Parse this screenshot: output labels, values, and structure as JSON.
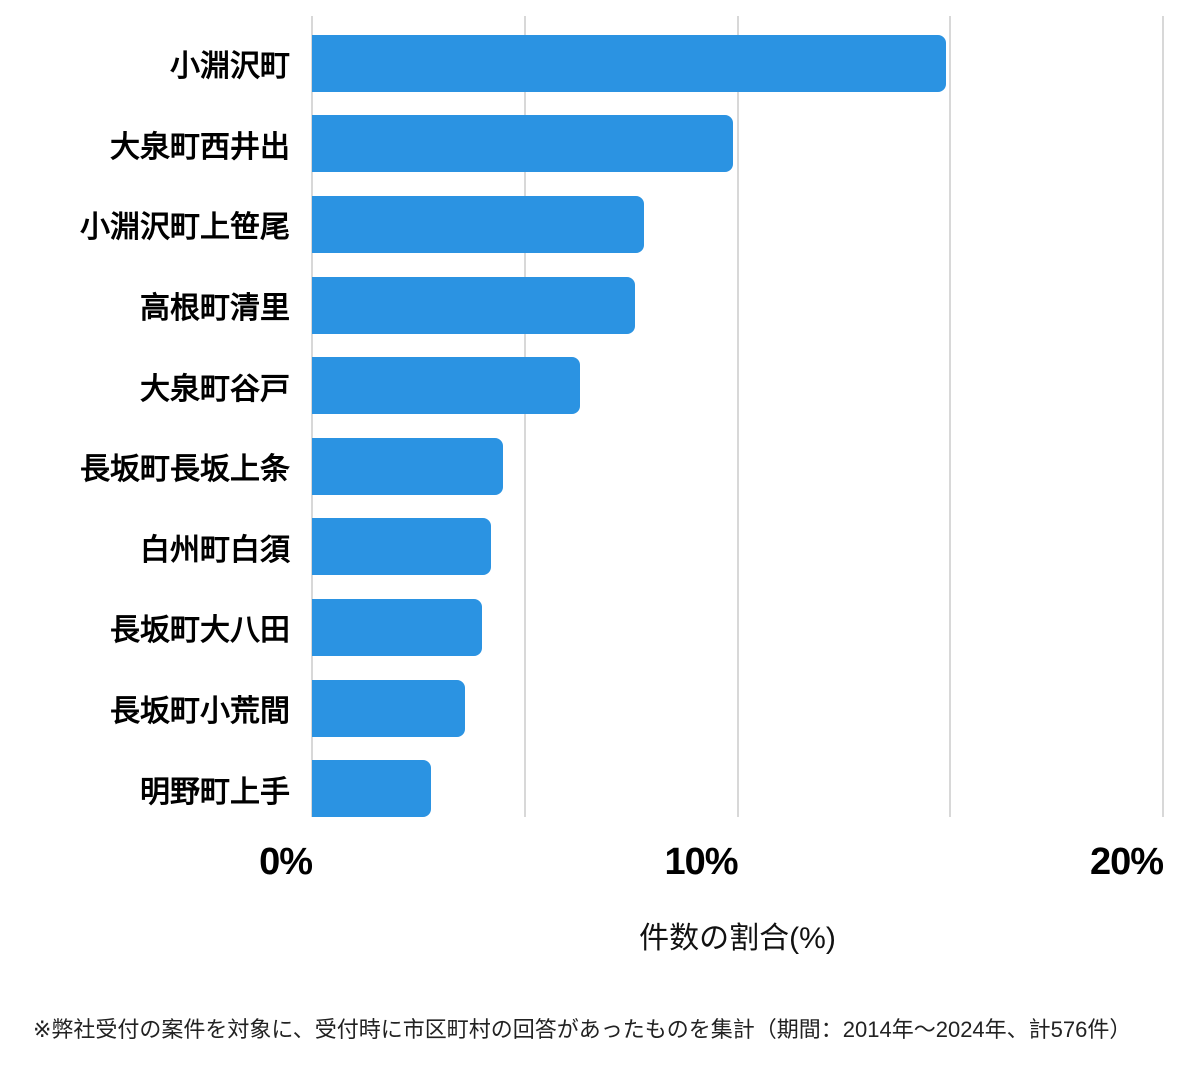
{
  "chart_data": {
    "type": "bar",
    "orientation": "horizontal",
    "categories": [
      "小淵沢町",
      "大泉町西井出",
      "小淵沢町上笹尾",
      "高根町清里",
      "大泉町谷戸",
      "長坂町長坂上条",
      "白州町白須",
      "長坂町大八田",
      "長坂町小荒間",
      "明野町上手"
    ],
    "values": [
      14.9,
      9.9,
      7.8,
      7.6,
      6.3,
      4.5,
      4.2,
      4.0,
      3.6,
      2.8
    ],
    "title": "",
    "xlabel": "件数の割合(%)",
    "ylabel": "",
    "xlim": [
      0,
      20
    ],
    "xticks": [
      "0%",
      "10%",
      "20%"
    ],
    "xtick_values": [
      0,
      10,
      20
    ],
    "gridline_values": [
      0,
      5,
      10,
      15,
      20
    ],
    "grid": true,
    "legend": false,
    "bar_color": "#2b93e2"
  },
  "footnote": "※弊社受付の案件を対象に、受付時に市区町村の回答があったものを集計（期間：2014年～2024年、計576件）",
  "colors": {
    "bar": "#2b93e2",
    "gridline": "#d8d8d8",
    "label_text": "#000000",
    "footnote_text": "#222222",
    "background": "#ffffff"
  }
}
